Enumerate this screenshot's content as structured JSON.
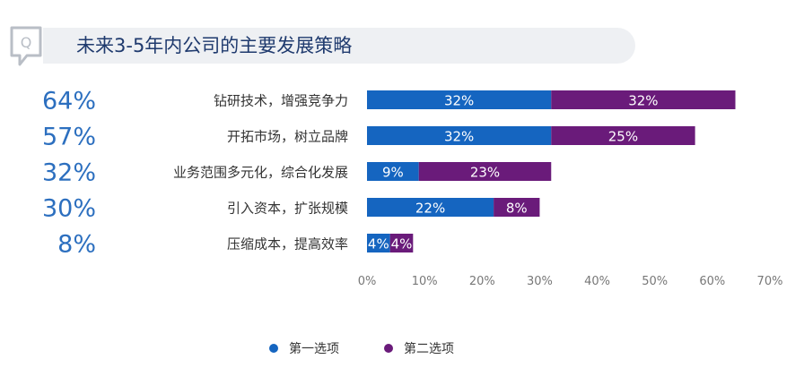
{
  "header": {
    "title": "未来3-5年内公司的主要发展策略"
  },
  "colors": {
    "series1": "#1565c0",
    "series2": "#6a1b7a",
    "percent_text": "#2c6fbf"
  },
  "chart_data": {
    "type": "bar",
    "orientation": "horizontal",
    "stacked": true,
    "title": "未来3-5年内公司的主要发展策略",
    "categories": [
      "钻研技术，增强竞争力",
      "开拓市场，树立品牌",
      "业务范围多元化，综合化发展",
      "引入资本，扩张规模",
      "压缩成本，提高效率"
    ],
    "totals": [
      "64%",
      "57%",
      "32%",
      "30%",
      "8%"
    ],
    "series": [
      {
        "name": "第一选项",
        "values": [
          32,
          32,
          9,
          22,
          4
        ],
        "labels": [
          "32%",
          "32%",
          "9%",
          "22%",
          "4%"
        ],
        "color": "#1565c0"
      },
      {
        "name": "第二选项",
        "values": [
          32,
          25,
          23,
          8,
          4
        ],
        "labels": [
          "32%",
          "25%",
          "23%",
          "8%",
          "4%"
        ],
        "color": "#6a1b7a"
      }
    ],
    "xlim": [
      0,
      70
    ],
    "xticks": [
      "0%",
      "10%",
      "20%",
      "30%",
      "40%",
      "50%",
      "60%",
      "70%"
    ],
    "legend_position": "bottom",
    "grid": false
  },
  "legend": [
    {
      "label": "第一选项",
      "color": "#1565c0"
    },
    {
      "label": "第二选项",
      "color": "#6a1b7a"
    }
  ]
}
